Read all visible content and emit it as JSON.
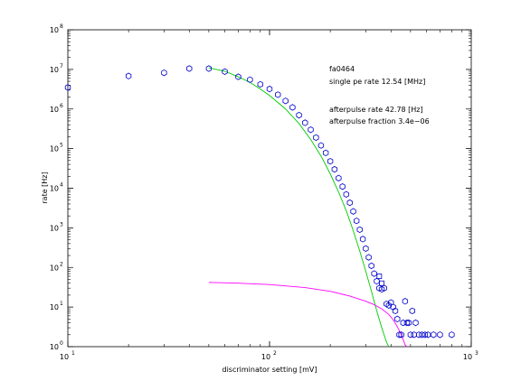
{
  "chart_data": {
    "type": "scatter",
    "xlabel": "discriminator setting [mV]",
    "ylabel": "rate [Hz]",
    "xscale": "log",
    "yscale": "log",
    "xlim": [
      10,
      1000
    ],
    "ylim": [
      1,
      100000000
    ],
    "grid": false,
    "x_ticks": [
      {
        "base": "10",
        "exp": "1",
        "value": 10
      },
      {
        "base": "10",
        "exp": "2",
        "value": 100
      },
      {
        "base": "10",
        "exp": "3",
        "value": 1000
      }
    ],
    "y_ticks": [
      {
        "base": "10",
        "exp": "0",
        "value": 1
      },
      {
        "base": "10",
        "exp": "1",
        "value": 10
      },
      {
        "base": "10",
        "exp": "2",
        "value": 100
      },
      {
        "base": "10",
        "exp": "3",
        "value": 1000
      },
      {
        "base": "10",
        "exp": "4",
        "value": 10000
      },
      {
        "base": "10",
        "exp": "5",
        "value": 100000
      },
      {
        "base": "10",
        "exp": "6",
        "value": 1000000
      },
      {
        "base": "10",
        "exp": "7",
        "value": 10000000
      },
      {
        "base": "10",
        "exp": "8",
        "value": 100000000
      }
    ],
    "annotations": [
      "fa0464",
      "single pe rate 12.54 [MHz]",
      "afterpulse rate 42.78 [Hz]",
      "afterpulse fraction 3.4e−06"
    ],
    "series": [
      {
        "marker": "hexagon",
        "color": "#0000cc",
        "points": [
          [
            10,
            3500000
          ],
          [
            20,
            6800000
          ],
          [
            30,
            8200000
          ],
          [
            40,
            10500000
          ],
          [
            50,
            10500000
          ],
          [
            60,
            8800000
          ],
          [
            70,
            6500000
          ],
          [
            80,
            5500000
          ],
          [
            90,
            4200000
          ],
          [
            100,
            3200000
          ],
          [
            110,
            2300000
          ],
          [
            120,
            1600000
          ],
          [
            130,
            1100000
          ],
          [
            140,
            700000
          ],
          [
            150,
            450000
          ],
          [
            160,
            300000
          ],
          [
            170,
            190000
          ],
          [
            180,
            120000
          ],
          [
            190,
            78000
          ],
          [
            200,
            48000
          ],
          [
            210,
            30000
          ],
          [
            220,
            18000
          ],
          [
            230,
            11000
          ],
          [
            240,
            7000
          ],
          [
            250,
            4300
          ],
          [
            260,
            2600
          ],
          [
            270,
            1500
          ],
          [
            280,
            900
          ],
          [
            290,
            520
          ],
          [
            300,
            300
          ],
          [
            310,
            180
          ],
          [
            320,
            110
          ],
          [
            330,
            70
          ],
          [
            340,
            45
          ],
          [
            350,
            30
          ],
          [
            360,
            28
          ],
          [
            370,
            30
          ],
          [
            380,
            12
          ],
          [
            390,
            11
          ],
          [
            400,
            13
          ],
          [
            410,
            10
          ],
          [
            420,
            8
          ],
          [
            430,
            5
          ],
          [
            440,
            2
          ],
          [
            450,
            2
          ],
          [
            460,
            4
          ],
          [
            470,
            14
          ],
          [
            480,
            4
          ],
          [
            490,
            4
          ],
          [
            500,
            2
          ],
          [
            510,
            8
          ],
          [
            520,
            2
          ],
          [
            530,
            4
          ],
          [
            550,
            2
          ],
          [
            570,
            2
          ],
          [
            590,
            2
          ],
          [
            610,
            2
          ],
          [
            650,
            2
          ],
          [
            700,
            2
          ],
          [
            800,
            2
          ]
        ]
      },
      {
        "marker": "square",
        "color": "#0000cc",
        "points": [
          [
            350,
            60
          ],
          [
            360,
            40
          ]
        ]
      },
      {
        "type": "line",
        "color": "#00cc00",
        "points": [
          [
            50,
            11000000
          ],
          [
            60,
            9000000
          ],
          [
            70,
            6500000
          ],
          [
            80,
            4700000
          ],
          [
            90,
            3200000
          ],
          [
            100,
            2200000
          ],
          [
            120,
            1000000
          ],
          [
            140,
            430000
          ],
          [
            160,
            170000
          ],
          [
            180,
            65000
          ],
          [
            200,
            23000
          ],
          [
            220,
            8000
          ],
          [
            240,
            2700
          ],
          [
            260,
            850
          ],
          [
            280,
            260
          ],
          [
            300,
            80
          ],
          [
            320,
            25
          ],
          [
            340,
            8
          ],
          [
            360,
            3
          ],
          [
            380,
            1.3
          ],
          [
            390,
            1
          ]
        ]
      },
      {
        "type": "line",
        "color": "#ff00ff",
        "points": [
          [
            50,
            42
          ],
          [
            70,
            40
          ],
          [
            100,
            37
          ],
          [
            150,
            31
          ],
          [
            200,
            25
          ],
          [
            250,
            19
          ],
          [
            300,
            14
          ],
          [
            330,
            11.5
          ],
          [
            360,
            9
          ],
          [
            390,
            6.5
          ],
          [
            410,
            4.8
          ],
          [
            430,
            3.2
          ],
          [
            450,
            2
          ],
          [
            460,
            1.5
          ],
          [
            470,
            1.1
          ],
          [
            480,
            1
          ]
        ]
      }
    ]
  }
}
